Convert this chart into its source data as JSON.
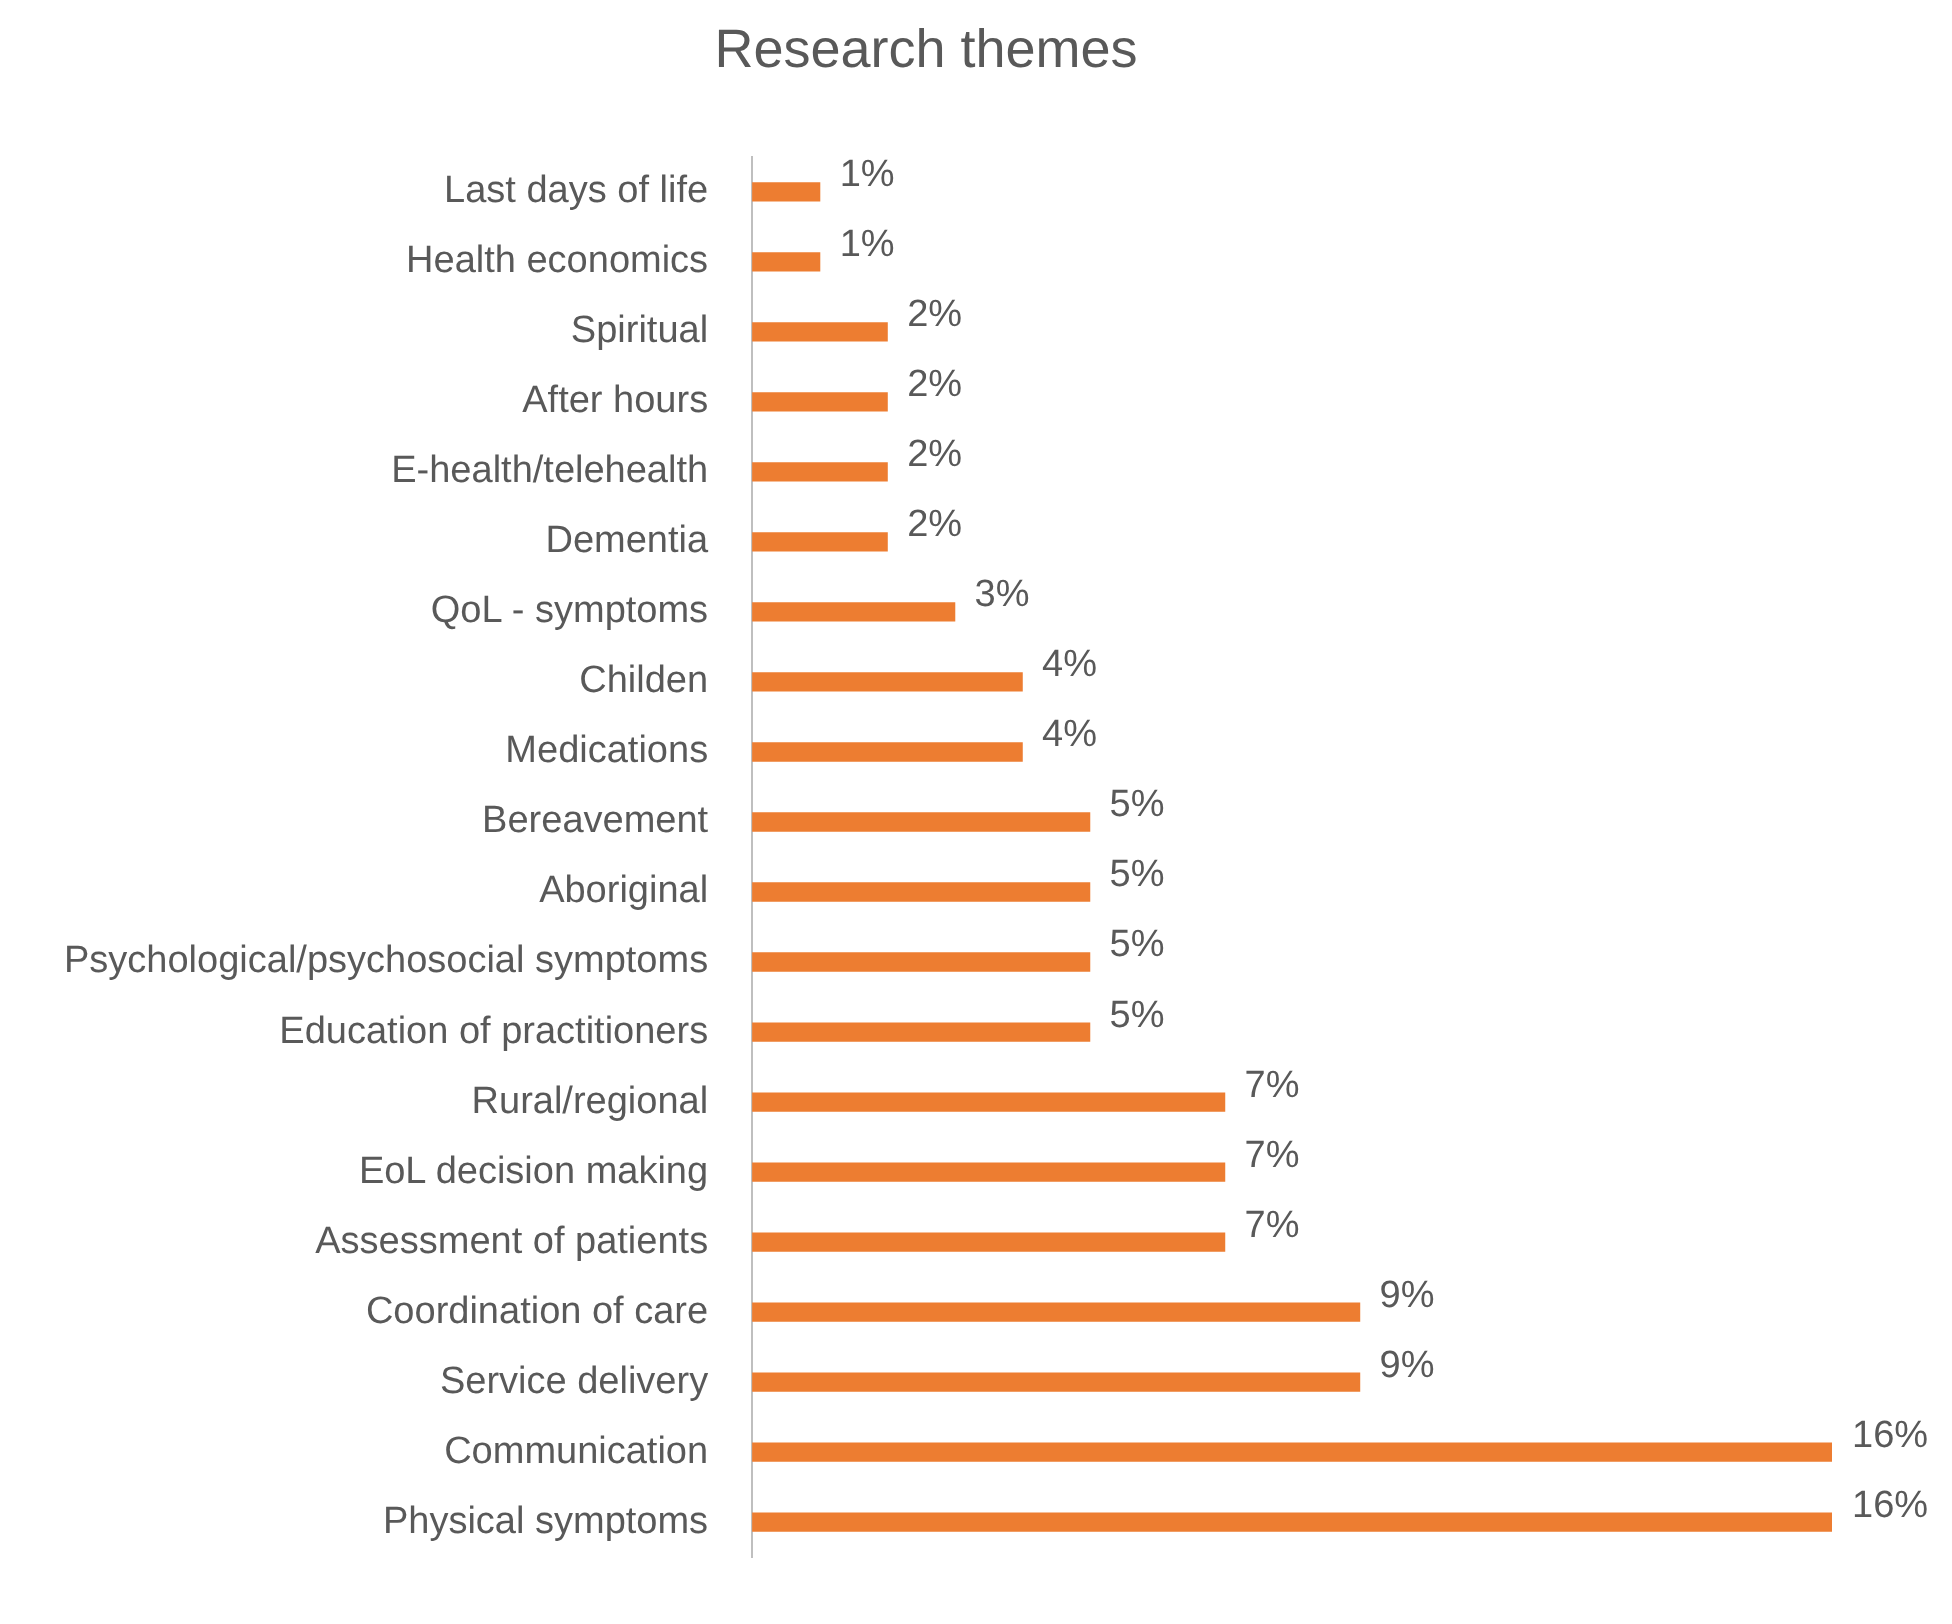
{
  "chart_data": {
    "type": "bar",
    "orientation": "horizontal",
    "tick_labels": "y",
    "title": "Research themes",
    "categories": [
      "Last days of life",
      "Health economics",
      "Spiritual",
      "After hours",
      "E-health/telehealth",
      "Dementia",
      "QoL - symptoms",
      "Childen",
      "Medications",
      "Bereavement",
      "Aboriginal",
      "Psychological/psychosocial symptoms",
      "Education of practitioners",
      "Rural/regional",
      "EoL decision making",
      "Assessment of patients",
      "Coordination of care",
      "Service delivery",
      "Communication",
      "Physical symptoms"
    ],
    "values": [
      1,
      1,
      2,
      2,
      2,
      2,
      3,
      4,
      4,
      5,
      5,
      5,
      5,
      7,
      7,
      7,
      9,
      9,
      16,
      16
    ],
    "value_labels": [
      "1%",
      "1%",
      "2%",
      "2%",
      "2%",
      "2%",
      "3%",
      "4%",
      "4%",
      "5%",
      "5%",
      "5%",
      "5%",
      "7%",
      "7%",
      "7%",
      "9%",
      "9%",
      "16%",
      "16%"
    ],
    "color": "#ed7d31",
    "legend": false
  }
}
